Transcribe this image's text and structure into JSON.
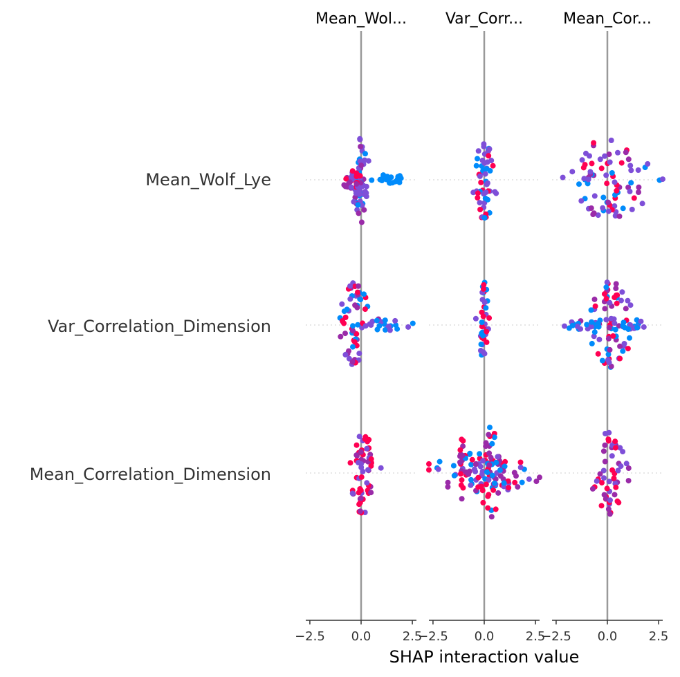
{
  "chart_data": {
    "type": "scatter",
    "subtype": "shap-interaction-beeswarm",
    "panel_titles": [
      "Mean_Wol...",
      "Var_Corr...",
      "Mean_Cor..."
    ],
    "row_labels": [
      "Mean_Wolf_Lye",
      "Var_Correlation_Dimension",
      "Mean_Correlation_Dimension"
    ],
    "xlabel": "SHAP interaction value",
    "xlim": [
      -2.7,
      2.7
    ],
    "x_ticks": [
      -2.5,
      0.0,
      2.5
    ],
    "x_tick_labels": [
      "−2.5",
      "0.0",
      "2.5"
    ],
    "row_guides": "dotted",
    "colors": {
      "low": "#008bfb",
      "mid": "#7e4fd8",
      "high": "#ff0052",
      "purple": "#9a2ba8",
      "zero_line": "#999999",
      "axis": "#333333"
    },
    "cells": [
      {
        "panel": 0,
        "row": 0,
        "clusters": [
          {
            "center": 0.0,
            "count": 55,
            "spread": 0.18,
            "height": 62,
            "colors": [
              "mid",
              "low",
              "mid",
              "purple"
            ]
          },
          {
            "center": -0.4,
            "count": 28,
            "spread": 0.25,
            "height": 14,
            "colors": [
              "high",
              "purple",
              "mid"
            ]
          },
          {
            "center": 1.4,
            "count": 20,
            "spread": 0.5,
            "height": 8,
            "colors": [
              "low"
            ]
          }
        ]
      },
      {
        "panel": 1,
        "row": 0,
        "clusters": [
          {
            "center": 0.0,
            "count": 55,
            "spread": 0.22,
            "height": 60,
            "colors": [
              "mid",
              "low",
              "mid",
              "high"
            ]
          }
        ]
      },
      {
        "panel": 2,
        "row": 0,
        "clusters": [
          {
            "center": 0.0,
            "count": 80,
            "spread": 1.0,
            "height": 58,
            "colors": [
              "mid",
              "low",
              "high",
              "purple",
              "mid"
            ]
          }
        ]
      },
      {
        "panel": 0,
        "row": 1,
        "clusters": [
          {
            "center": -0.3,
            "count": 60,
            "spread": 0.3,
            "height": 65,
            "colors": [
              "mid",
              "low",
              "high",
              "purple"
            ]
          },
          {
            "center": 1.3,
            "count": 20,
            "spread": 0.6,
            "height": 8,
            "colors": [
              "low",
              "mid"
            ]
          }
        ]
      },
      {
        "panel": 1,
        "row": 1,
        "clusters": [
          {
            "center": 0.0,
            "count": 40,
            "spread": 0.12,
            "height": 62,
            "colors": [
              "low",
              "high",
              "mid"
            ]
          }
        ]
      },
      {
        "panel": 2,
        "row": 1,
        "clusters": [
          {
            "center": 0.2,
            "count": 75,
            "spread": 0.45,
            "height": 65,
            "colors": [
              "low",
              "mid",
              "high",
              "purple"
            ]
          },
          {
            "center": -1.3,
            "count": 20,
            "spread": 0.5,
            "height": 6,
            "colors": [
              "low",
              "mid"
            ]
          },
          {
            "center": 1.3,
            "count": 15,
            "spread": 0.4,
            "height": 8,
            "colors": [
              "low",
              "mid"
            ]
          }
        ]
      },
      {
        "panel": 0,
        "row": 2,
        "clusters": [
          {
            "center": 0.05,
            "count": 60,
            "spread": 0.28,
            "height": 60,
            "colors": [
              "high",
              "purple",
              "mid",
              "high"
            ]
          }
        ]
      },
      {
        "panel": 1,
        "row": 2,
        "clusters": [
          {
            "center": 0.0,
            "count": 95,
            "spread": 1.2,
            "height": 30,
            "colors": [
              "high",
              "mid",
              "purple",
              "low"
            ]
          },
          {
            "center": -1.1,
            "count": 14,
            "spread": 0.06,
            "height": 58,
            "colors": [
              "purple",
              "high"
            ]
          },
          {
            "center": 0.3,
            "count": 30,
            "spread": 0.2,
            "height": 70,
            "colors": [
              "high",
              "purple",
              "low"
            ]
          }
        ]
      },
      {
        "panel": 2,
        "row": 2,
        "clusters": [
          {
            "center": 0.1,
            "count": 55,
            "spread": 0.35,
            "height": 60,
            "colors": [
              "high",
              "purple",
              "mid"
            ]
          }
        ]
      }
    ]
  }
}
